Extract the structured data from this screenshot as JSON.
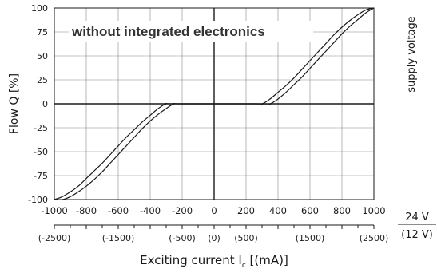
{
  "chart_data": {
    "type": "line",
    "title": "",
    "ylabel": "Flow Q [%]",
    "xlabel_main": "Exciting current I",
    "xlabel_sub": "c",
    "xlabel_tail": " [(mA)]",
    "right_label": "supply voltage",
    "voltage_top": "24 V",
    "voltage_bottom": "(12 V)",
    "annotation": "without integrated electronics",
    "xlim": [
      -1000,
      1000
    ],
    "ylim": [
      -100,
      100
    ],
    "grid": true,
    "x_ticks": [
      "-1000",
      "-800",
      "-600",
      "-400",
      "-200",
      "0",
      "200",
      "400",
      "600",
      "800",
      "1000"
    ],
    "y_ticks": [
      "100",
      "75",
      "50",
      "25",
      "0",
      "-25",
      "-50",
      "-75",
      "-100"
    ],
    "secondary_x_ticks": [
      {
        "x": -1000,
        "label": "(-2500)"
      },
      {
        "x": -600,
        "label": "(-1500)"
      },
      {
        "x": -200,
        "label": "(-500)"
      },
      {
        "x": 0,
        "label": "(0)"
      },
      {
        "x": 200,
        "label": "(500)"
      },
      {
        "x": 600,
        "label": "(1500)"
      },
      {
        "x": 1000,
        "label": "(2500)"
      }
    ],
    "series": [
      {
        "x": [
          -1000,
          -950,
          -900,
          -850,
          -800,
          -750,
          -700,
          -650,
          -600,
          -550,
          -500,
          -450,
          -400,
          -350,
          -300,
          -250,
          250,
          300,
          350,
          400,
          450,
          500,
          550,
          600,
          650,
          700,
          750,
          800,
          850,
          900,
          950,
          1000
        ],
        "y": [
          -100,
          -97,
          -92,
          -86,
          -78,
          -70,
          -62,
          -53,
          -44,
          -35,
          -27,
          -19,
          -12,
          -5,
          0,
          0,
          0,
          0,
          5,
          12,
          19,
          27,
          36,
          45,
          54,
          63,
          72,
          80,
          87,
          93,
          98,
          100
        ]
      },
      {
        "x": [
          -1000,
          -950,
          -900,
          -850,
          -800,
          -750,
          -700,
          -650,
          -600,
          -550,
          -500,
          -450,
          -400,
          -350,
          -300,
          -250,
          -200,
          300,
          350,
          400,
          450,
          500,
          550,
          600,
          650,
          700,
          750,
          800,
          850,
          900,
          950,
          1000
        ],
        "y": [
          -100,
          -100,
          -97,
          -92,
          -86,
          -79,
          -71,
          -62,
          -53,
          -44,
          -35,
          -26,
          -18,
          -11,
          -5,
          0,
          0,
          0,
          0,
          5,
          12,
          20,
          28,
          37,
          46,
          55,
          64,
          73,
          81,
          88,
          95,
          100
        ]
      }
    ],
    "colors": {
      "line": "#1a1a1a",
      "grid": "#888888",
      "axis": "#1a1a1a"
    }
  }
}
